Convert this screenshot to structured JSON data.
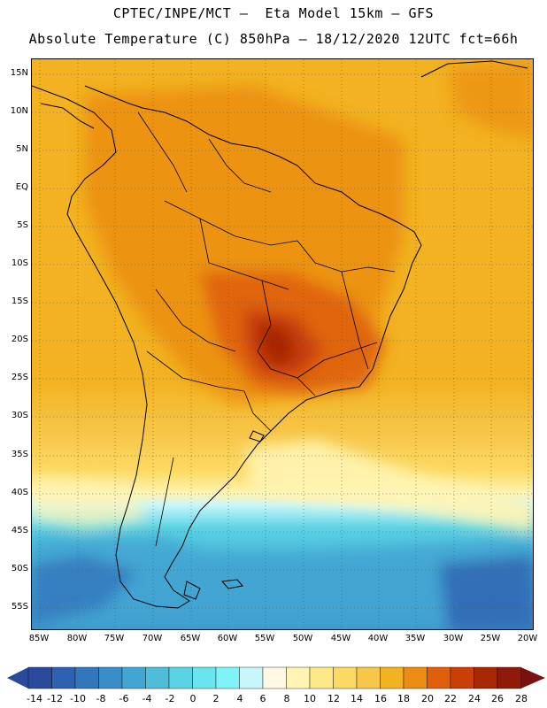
{
  "title_line1": "CPTEC/INPE/MCT –  Eta Model 15km – GFS",
  "title_line2": "Absolute Temperature (C) 850hPa – 18/12/2020 12UTC fct=66h",
  "lat_ticks": [
    "15N",
    "10N",
    "5N",
    "EQ",
    "5S",
    "10S",
    "15S",
    "20S",
    "25S",
    "30S",
    "35S",
    "40S",
    "45S",
    "50S",
    "55S"
  ],
  "lon_ticks": [
    "85W",
    "80W",
    "75W",
    "70W",
    "65W",
    "60W",
    "55W",
    "50W",
    "45W",
    "40W",
    "35W",
    "30W",
    "25W",
    "20W"
  ],
  "colorbar": {
    "labels": [
      "-14",
      "-12",
      "-10",
      "-8",
      "-6",
      "-4",
      "-2",
      "0",
      "2",
      "4",
      "6",
      "8",
      "10",
      "12",
      "14",
      "16",
      "18",
      "20",
      "22",
      "24",
      "26",
      "28"
    ],
    "low_color": "#2a4a9c",
    "high_color": "#7a1010",
    "colors": [
      "#2a4a9c",
      "#2e62b0",
      "#3277bc",
      "#3a8ec8",
      "#43a6d2",
      "#4ebdd8",
      "#5bd3e4",
      "#6ae5ee",
      "#7ff3f6",
      "#c8f6fb",
      "#fff8e4",
      "#fff4b4",
      "#fde98a",
      "#fbda63",
      "#f7c74a",
      "#f2b221",
      "#eb8d13",
      "#df5f0b",
      "#c83f08",
      "#a82805",
      "#8f1a0a",
      "#7a1010"
    ]
  }
}
